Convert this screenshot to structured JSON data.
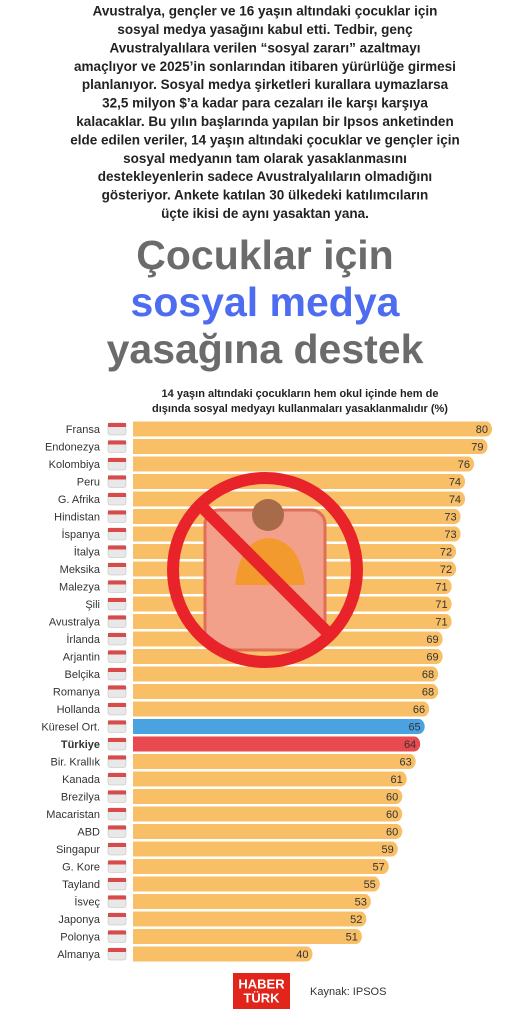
{
  "intro": [
    "Avustralya, gençler ve 16 yaşın altındaki çocuklar için",
    "sosyal medya yasağını kabul etti. Tedbir, genç",
    "Avustralyalılara verilen “sosyal zararı” azaltmayı",
    "amaçlıyor ve 2025’in sonlarından itibaren yürürlüğe girmesi",
    "planlanıyor. Sosyal medya şirketleri  kurallara uymazlarsa",
    "32,5 milyon $’a kadar para cezaları ile karşı karşıya",
    "kalacaklar. Bu yılın başlarında yapılan bir Ipsos anketinden",
    "elde edilen veriler, 14 yaşın altındaki çocuklar ve gençler için",
    "sosyal medyanın tam olarak yasaklanmasını",
    "destekleyenlerin sadece Avustralyalıların olmadığını",
    "gösteriyor. Ankete katılan 30 ülkedeki katılımcıların",
    "üçte ikisi de aynı yasaktan yana."
  ],
  "headline": [
    {
      "text": "Çocuklar için",
      "color": "#6b6b6b"
    },
    {
      "text": "sosyal medya",
      "color": "#4d6cf0"
    },
    {
      "text": "yasağına destek",
      "color": "#6b6b6b"
    }
  ],
  "chart_data": {
    "type": "hbar",
    "title": [
      "14 yaşın altındaki çocukların hem okul içinde hem de",
      "dışında sosyal medyayı kullanmaları yasaklanmalıdır (%)"
    ],
    "categories": [
      "Fransa",
      "Endonezya",
      "Kolombiya",
      "Peru",
      "G. Afrika",
      "Hindistan",
      "İspanya",
      "İtalya",
      "Meksika",
      "Malezya",
      "Şili",
      "Avustralya",
      "İrlanda",
      "Arjantin",
      "Belçika",
      "Romanya",
      "Hollanda",
      "Küresel Ort.",
      "Türkiye",
      "Bir. Krallık",
      "Kanada",
      "Brezilya",
      "Macaristan",
      "ABD",
      "Singapur",
      "G. Kore",
      "Tayland",
      "İsveç",
      "Japonya",
      "Polonya",
      "Almanya"
    ],
    "values": [
      80,
      79,
      76,
      74,
      74,
      73,
      73,
      72,
      72,
      71,
      71,
      71,
      69,
      69,
      68,
      68,
      66,
      65,
      64,
      63,
      61,
      60,
      60,
      60,
      59,
      57,
      55,
      53,
      52,
      51,
      40
    ],
    "color": "#f8bf66",
    "highlight_colors": {
      "Küresel Ort.": "#4aa3e0",
      "Türkiye": "#e84a4f"
    },
    "bold_category": "Türkiye"
  },
  "footer": {
    "logo": [
      "HABER",
      "TÜRK"
    ],
    "source": "Kaynak: IPSOS"
  }
}
